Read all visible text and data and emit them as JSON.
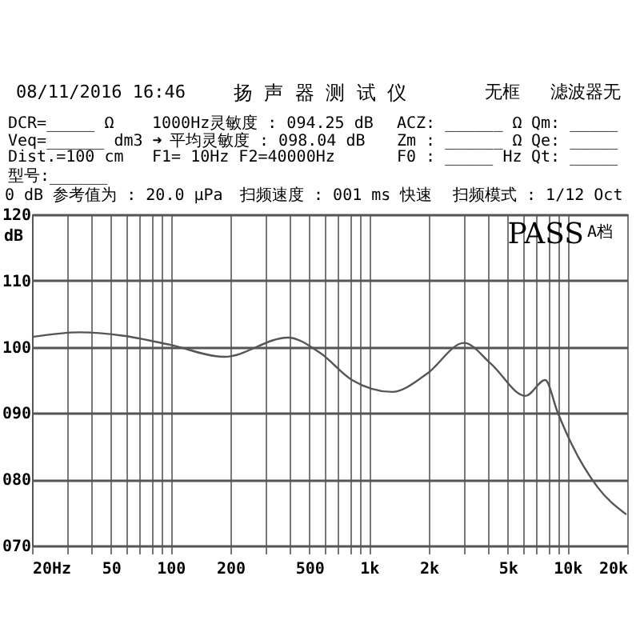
{
  "chart_data": {
    "type": "line",
    "ylabel": "dB",
    "annotations": [
      "08/11/2016 16:46",
      "扬 声 器 测 试 仪",
      "无框",
      "滤波器无",
      "DCR=_____ Ω",
      "1000Hz灵敏度 : 094.25 dB",
      "ACZ: ______ Ω",
      "Qm: _____",
      "Veq=______ dm3 ➜",
      "平均灵敏度 : 098.04 dB",
      "Zm : ______ Ω",
      "Qe: _____",
      "Dist.=100 cm",
      "F1=   10Hz  F2=40000Hz",
      "F0 : _____ Hz",
      "Qt: _____",
      "型号:______",
      "0 dB 参考值为 : 20.0 μPa",
      "扫频速度 : 001 ms 快速",
      "扫频模式 : 1/12 Oct",
      "PASS",
      "A档"
    ],
    "x": [
      20,
      35,
      57,
      100,
      186,
      390,
      566,
      820,
      1305,
      1950,
      3010,
      4100,
      6140,
      7720,
      8900,
      10500,
      14200,
      19800
    ],
    "series": [
      {
        "color": "#555555",
        "values": [
          101.5,
          102.2,
          101.7,
          100.3,
          98.5,
          101.4,
          99.1,
          95.0,
          93.2,
          95.9,
          100.6,
          97.5,
          92.6,
          95.0,
          90.2,
          85.3,
          78.8,
          74.7
        ]
      }
    ],
    "log": "x",
    "xlim": [
      20,
      20000
    ],
    "xticks": [
      {
        "value": 20,
        "label": "20Hz"
      },
      {
        "value": 30,
        "label": null
      },
      {
        "value": 40,
        "label": null
      },
      {
        "value": 50,
        "label": "50"
      },
      {
        "value": 60,
        "label": null
      },
      {
        "value": 70,
        "label": null
      },
      {
        "value": 80,
        "label": null
      },
      {
        "value": 90,
        "label": null
      },
      {
        "value": 100,
        "label": "100"
      },
      {
        "value": 200,
        "label": "200"
      },
      {
        "value": 300,
        "label": null
      },
      {
        "value": 400,
        "label": null
      },
      {
        "value": 500,
        "label": "500"
      },
      {
        "value": 600,
        "label": null
      },
      {
        "value": 700,
        "label": null
      },
      {
        "value": 800,
        "label": null
      },
      {
        "value": 900,
        "label": null
      },
      {
        "value": 1000,
        "label": "1k"
      },
      {
        "value": 2000,
        "label": "2k"
      },
      {
        "value": 3000,
        "label": null
      },
      {
        "value": 4000,
        "label": null
      },
      {
        "value": 5000,
        "label": "5k"
      },
      {
        "value": 6000,
        "label": null
      },
      {
        "value": 7000,
        "label": null
      },
      {
        "value": 8000,
        "label": null
      },
      {
        "value": 9000,
        "label": null
      },
      {
        "value": 10000,
        "label": "10k"
      },
      {
        "value": 20000,
        "label": "20k"
      }
    ],
    "ylim": [
      70,
      120
    ],
    "yticks": [
      {
        "value": 70,
        "label": "070"
      },
      {
        "value": 80,
        "label": "080"
      },
      {
        "value": 90,
        "label": "090"
      },
      100,
      110,
      120
    ],
    "grid": true,
    "marker": "none",
    "line_style": "solid"
  }
}
